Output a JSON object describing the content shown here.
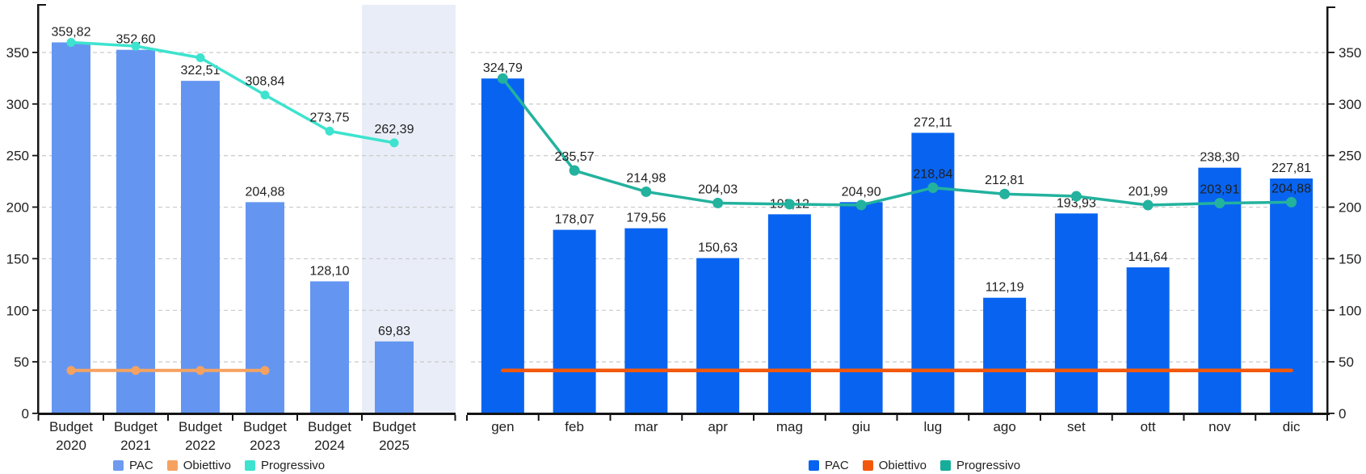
{
  "page": {
    "background": "#FFFFFF",
    "text_color": "#1F1F1F",
    "grid_color": "#C9C9C9",
    "axis_color": "#151515"
  },
  "chart_data": [
    {
      "id": "budget-by-year",
      "type": "bar+line combo",
      "title": "",
      "xlabel": "",
      "ylabel": "",
      "categories": [
        "Budget 2020",
        "Budget 2021",
        "Budget 2022",
        "Budget 2023",
        "Budget 2024",
        "Budget 2025"
      ],
      "y_axis": {
        "side": "left",
        "ticks": [
          0,
          50,
          100,
          150,
          200,
          250,
          300,
          350
        ],
        "ylim": [
          0,
          395
        ],
        "grid": "dashed"
      },
      "highlight_category_index": 5,
      "highlight_color": "#E9EDF7",
      "series": [
        {
          "name": "PAC",
          "type": "bar",
          "color": "#6496F1",
          "values": [
            359.82,
            352.6,
            322.51,
            204.88,
            128.1,
            69.83
          ],
          "labels": [
            "359,82",
            "352,60",
            "322,51",
            "204,88",
            "128,10",
            "69,83"
          ]
        },
        {
          "name": "Obiettivo",
          "type": "line",
          "color": "#F5A261",
          "markers": true,
          "estimated": true,
          "values": [
            41.7,
            41.7,
            41.7,
            41.7,
            null,
            null
          ],
          "labels": [
            null,
            null,
            null,
            null,
            null,
            null
          ]
        },
        {
          "name": "Progressivo",
          "type": "line",
          "color": "#3DE3CE",
          "markers": true,
          "values": [
            359.82,
            356.2,
            344.9,
            308.84,
            273.75,
            262.39
          ],
          "labels": [
            null,
            null,
            null,
            "308,84",
            "273,75",
            "262,39"
          ]
        }
      ],
      "legend": {
        "position": "bottom",
        "items": [
          {
            "label": "PAC",
            "color": "#6E9AF0"
          },
          {
            "label": "Obiettivo",
            "color": "#F5A261"
          },
          {
            "label": "Progressivo",
            "color": "#3DE3CE"
          }
        ]
      }
    },
    {
      "id": "budget-by-month",
      "type": "bar+line combo",
      "title": "",
      "xlabel": "",
      "ylabel": "",
      "categories": [
        "gen",
        "feb",
        "mar",
        "apr",
        "mag",
        "giu",
        "lug",
        "ago",
        "set",
        "ott",
        "nov",
        "dic"
      ],
      "y_axis": {
        "side": "right",
        "ticks": [
          0,
          50,
          100,
          150,
          200,
          250,
          300,
          350
        ],
        "ylim": [
          0,
          395
        ],
        "grid": "dashed"
      },
      "highlight_category_index": null,
      "highlight_color": null,
      "series": [
        {
          "name": "PAC",
          "type": "bar",
          "color": "#0864F0",
          "values": [
            324.79,
            178.07,
            179.56,
            150.63,
            193.12,
            204.9,
            272.11,
            112.19,
            193.93,
            141.64,
            238.3,
            227.81
          ],
          "labels": [
            "324,79",
            "178,07",
            "179,56",
            "150,63",
            "193,12",
            "204,90",
            "272,11",
            "112,19",
            "193,93",
            "141,64",
            "238,30",
            "227,81"
          ]
        },
        {
          "name": "Obiettivo",
          "type": "line",
          "color": "#F2580C",
          "markers": false,
          "estimated": true,
          "values": [
            41.7,
            41.7,
            41.7,
            41.7,
            41.7,
            41.7,
            41.7,
            41.7,
            41.7,
            41.7,
            41.7,
            41.7
          ],
          "labels": [
            null,
            null,
            null,
            null,
            null,
            null,
            null,
            null,
            null,
            null,
            null,
            null
          ]
        },
        {
          "name": "Progressivo",
          "type": "line",
          "color": "#23B29E",
          "markers": true,
          "values": [
            324.79,
            235.57,
            214.98,
            204.03,
            202.9,
            202.1,
            218.84,
            212.81,
            210.6,
            201.99,
            203.91,
            204.88
          ],
          "labels": [
            null,
            "235,57",
            "214,98",
            "204,03",
            null,
            null,
            "218,84",
            "212,81",
            null,
            "201,99",
            "203,91",
            "204,88"
          ]
        }
      ],
      "legend": {
        "position": "bottom",
        "items": [
          {
            "label": "PAC",
            "color": "#0864F0"
          },
          {
            "label": "Obiettivo",
            "color": "#F2580C"
          },
          {
            "label": "Progressivo",
            "color": "#17AD9B"
          }
        ]
      }
    }
  ]
}
